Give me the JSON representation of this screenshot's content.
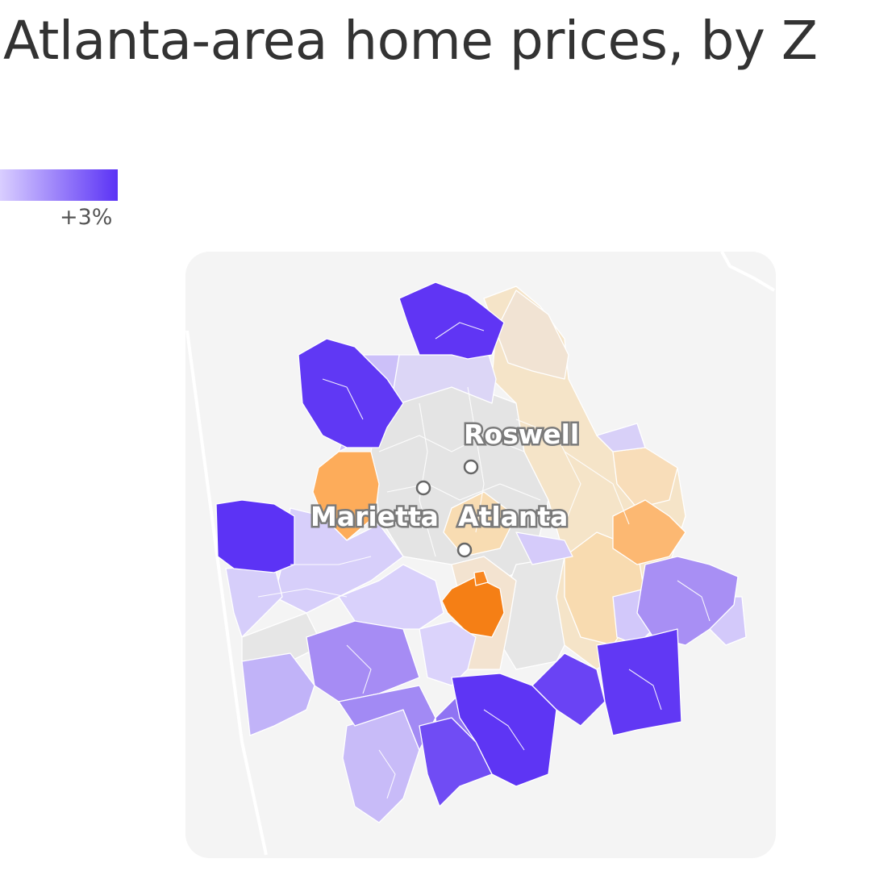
{
  "title": "Atlanta-area home prices, by Z",
  "legend": {
    "max_label": "+3%",
    "gradient_start": "#d9ceff",
    "gradient_end": "#5b33f5"
  },
  "colors": {
    "background_panel": "#f4f4f4",
    "no_data": "#e6e6e6",
    "neg_light": "#f7e6cc",
    "neg_mid": "#fdb064",
    "neg_dark": "#f57f15",
    "pos_1": "#d9d0fb",
    "pos_2": "#c4b8f8",
    "pos_3": "#a48af4",
    "pos_4": "#5b33f5"
  },
  "cities": [
    {
      "name": "Roswell"
    },
    {
      "name": "Marietta"
    },
    {
      "name": "Atlanta"
    }
  ]
}
